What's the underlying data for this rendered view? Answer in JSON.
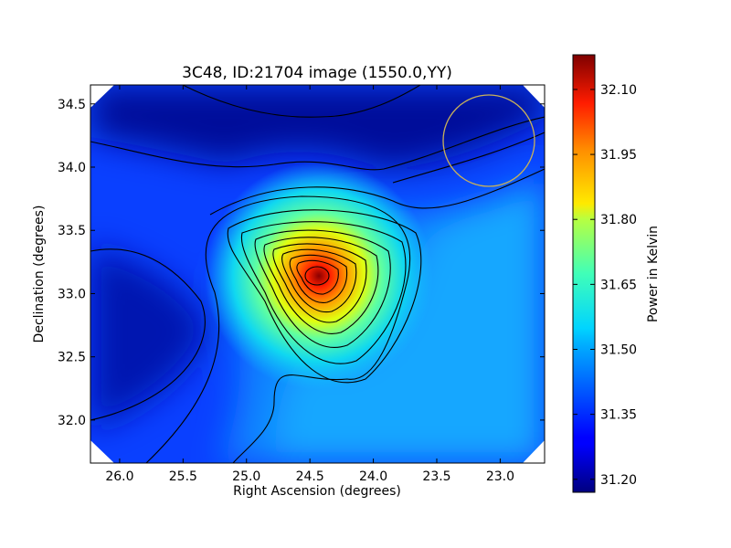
{
  "chart_data": {
    "type": "heatmap",
    "title": "3C48, ID:21704 image (1550.0,YY)",
    "xlabel": "Right Ascension (degrees)",
    "ylabel": "Declination (degrees)",
    "xlim": [
      26.23,
      22.65
    ],
    "ylim": [
      31.66,
      34.65
    ],
    "x_ticks": [
      "26.0",
      "25.5",
      "25.0",
      "24.5",
      "24.0",
      "23.5",
      "23.0"
    ],
    "x_tick_values": [
      26.0,
      25.5,
      25.0,
      24.5,
      24.0,
      23.5,
      23.0
    ],
    "y_ticks": [
      "32.0",
      "32.5",
      "33.0",
      "33.5",
      "34.0",
      "34.5"
    ],
    "y_tick_values": [
      32.0,
      32.5,
      33.0,
      33.5,
      34.0,
      34.5
    ],
    "colorbar": {
      "label": "Power in Kelvin",
      "range": [
        31.17,
        32.18
      ],
      "ticks": [
        "31.20",
        "31.35",
        "31.50",
        "31.65",
        "31.80",
        "31.95",
        "32.10"
      ],
      "tick_values": [
        31.2,
        31.35,
        31.5,
        31.65,
        31.8,
        31.95,
        32.1
      ]
    },
    "peak": {
      "ra": 24.45,
      "dec": 33.13,
      "value": 32.15
    },
    "beam_circle": {
      "ra": 23.07,
      "dec": 34.21,
      "radius_deg": 0.37
    },
    "grid": false
  },
  "colors": {
    "low": "#00007f",
    "mid": "#00c0ff",
    "high": "#7f0000",
    "contour": "#000000",
    "beam": "#c8b05a"
  }
}
